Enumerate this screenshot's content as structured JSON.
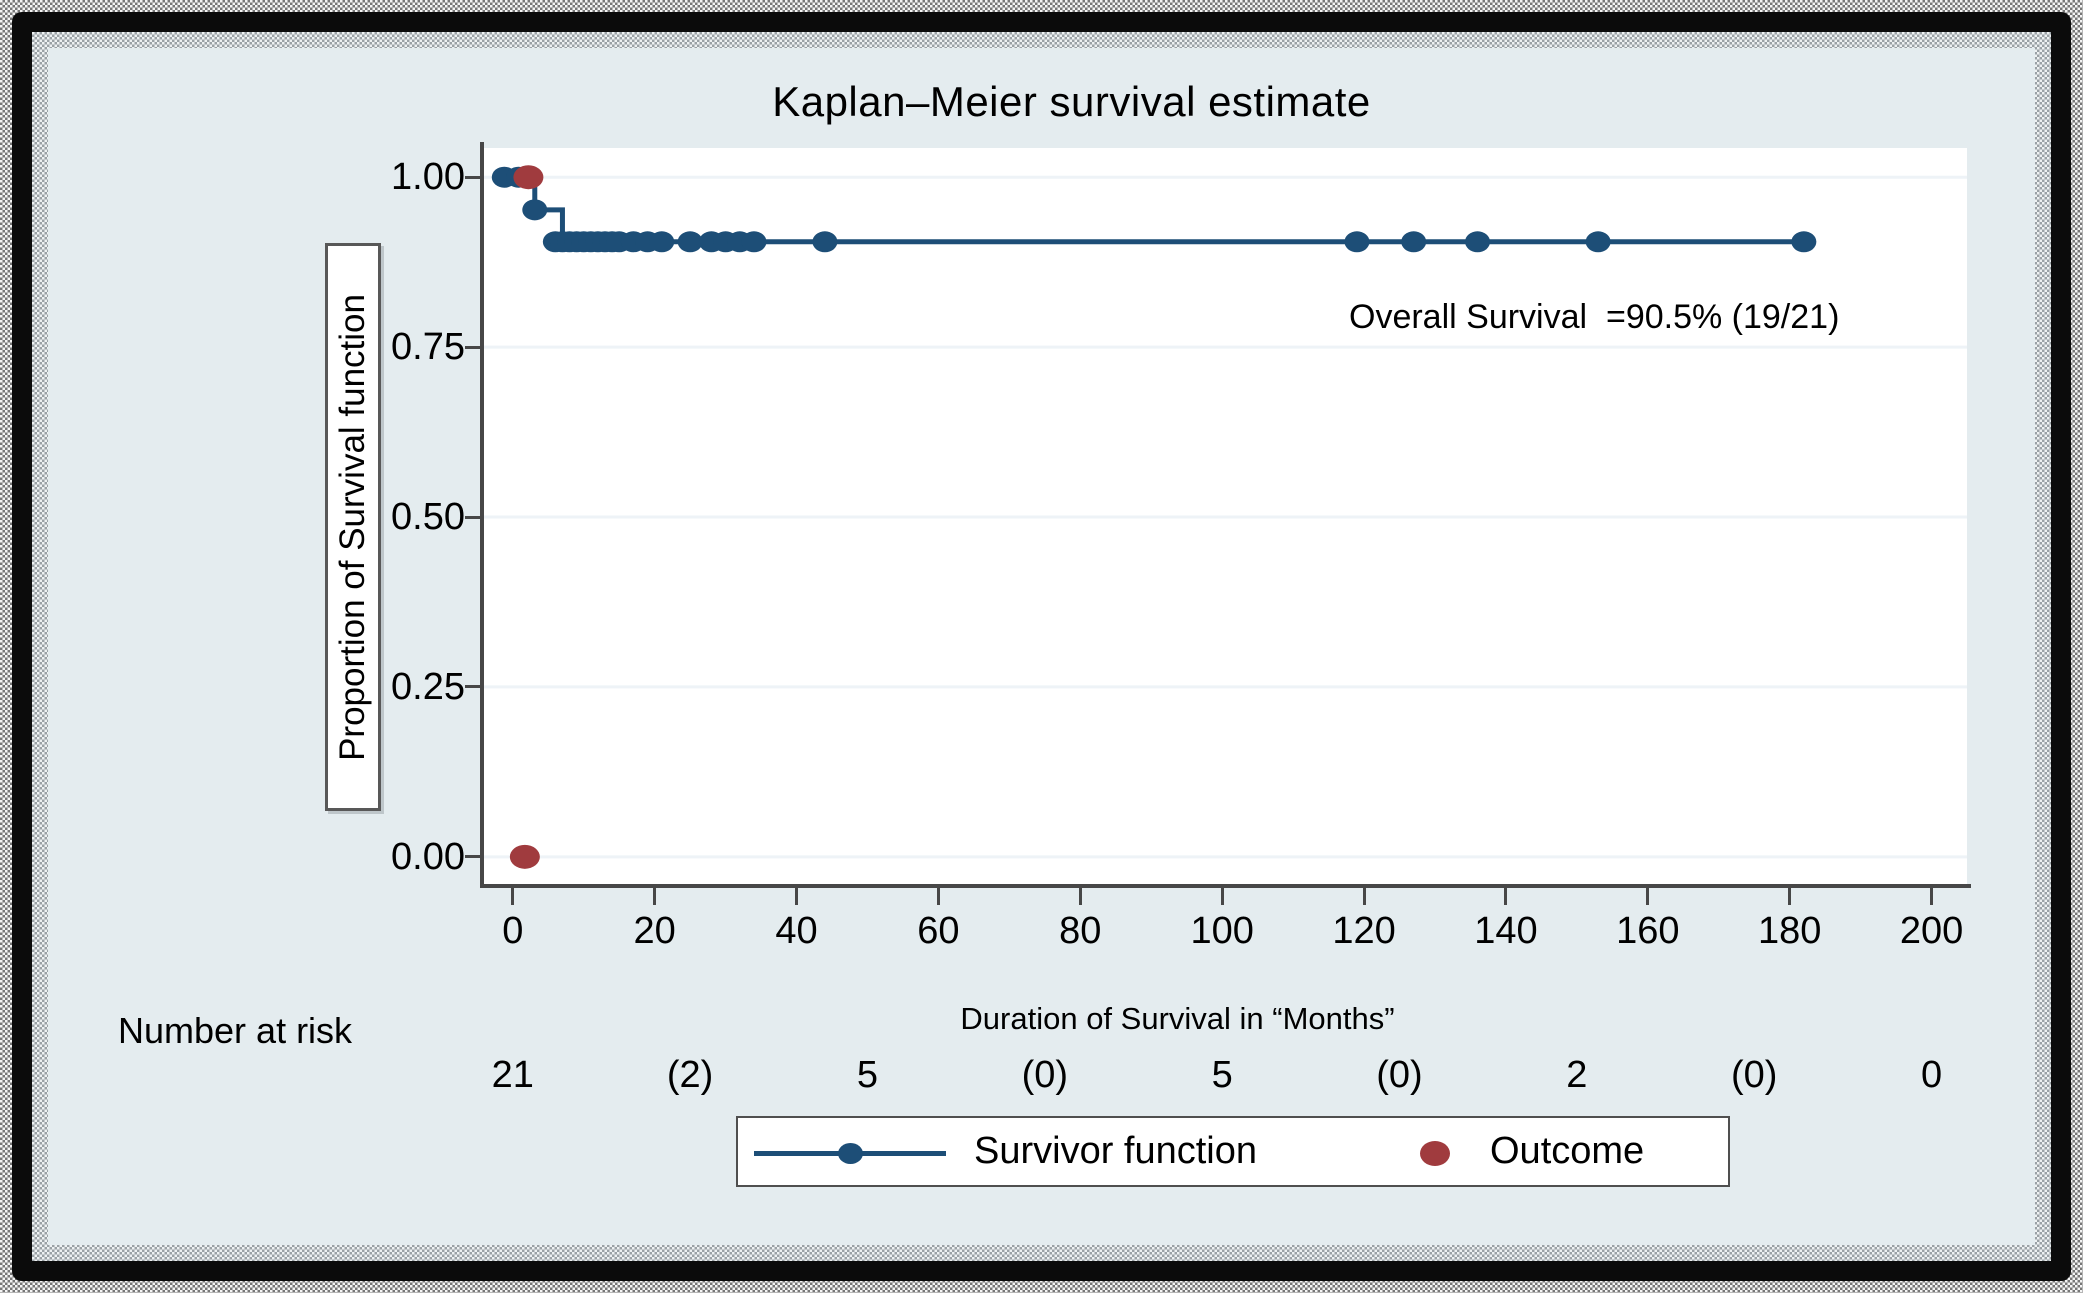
{
  "figure": {
    "background_color": "#e4ecef",
    "frame_color": "#0b0b0b",
    "axis_color": "#474747",
    "grid_color": "#eef3f7"
  },
  "chart_data": {
    "type": "line",
    "subtype": "kaplan-meier-step",
    "title": "Kaplan–Meier survival estimate",
    "xlabel": "Duration of Survival in “Months”",
    "ylabel": "Proportion of Survival function",
    "annotation": "Overall Survival  =90.5% (19/21)",
    "grid": "horizontal-only",
    "legend_position": "bottom-center",
    "xlim": [
      -4.2,
      205
    ],
    "ylim": [
      -0.04,
      1.043
    ],
    "x_ticks": [
      0,
      20,
      40,
      60,
      80,
      100,
      120,
      140,
      160,
      180,
      200
    ],
    "y_ticks": [
      {
        "label": "1.00",
        "value": 1.0
      },
      {
        "label": "0.75",
        "value": 0.75
      },
      {
        "label": "0.50",
        "value": 0.5
      },
      {
        "label": "0.25",
        "value": 0.25
      },
      {
        "label": "0.00",
        "value": 0.0
      }
    ],
    "series": [
      {
        "name": "Survivor function",
        "color": "#1d4e77",
        "line_width": 5,
        "step_points": [
          [
            -1.2,
            1.0
          ],
          [
            3.1,
            1.0
          ],
          [
            3.1,
            0.952
          ],
          [
            7.0,
            0.952
          ],
          [
            7.0,
            0.905
          ],
          [
            182,
            0.905
          ]
        ],
        "markers": [
          [
            -1.2,
            1.0
          ],
          [
            0.8,
            1.0
          ],
          [
            3.1,
            0.952
          ],
          [
            6,
            0.905
          ],
          [
            7,
            0.905
          ],
          [
            8,
            0.905
          ],
          [
            9,
            0.905
          ],
          [
            10,
            0.905
          ],
          [
            11,
            0.905
          ],
          [
            12,
            0.905
          ],
          [
            13,
            0.905
          ],
          [
            14,
            0.905
          ],
          [
            15,
            0.905
          ],
          [
            17,
            0.905
          ],
          [
            19,
            0.905
          ],
          [
            21,
            0.905
          ],
          [
            25,
            0.905
          ],
          [
            28,
            0.905
          ],
          [
            30,
            0.905
          ],
          [
            32,
            0.905
          ],
          [
            34,
            0.905
          ],
          [
            44,
            0.905
          ],
          [
            119,
            0.905
          ],
          [
            127,
            0.905
          ],
          [
            136,
            0.905
          ],
          [
            153,
            0.905
          ],
          [
            182,
            0.905
          ]
        ]
      },
      {
        "name": "Outcome",
        "color": "#a03b3e",
        "points": [
          [
            2.2,
            1.0
          ],
          [
            1.7,
            0.0
          ]
        ]
      }
    ],
    "legend": {
      "entries": [
        {
          "label": "Survivor function",
          "marker": "line-with-dot",
          "color": "#1d4e77"
        },
        {
          "label": "Outcome",
          "marker": "dot",
          "color": "#a03b3e"
        }
      ]
    },
    "risk_table": {
      "label": "Number at risk",
      "times": [
        0,
        25,
        50,
        75,
        100,
        125,
        150,
        175,
        200
      ],
      "values": [
        "21",
        "(2)",
        "5",
        "(0)",
        "5",
        "(0)",
        "2",
        "(0)",
        "0"
      ]
    }
  }
}
